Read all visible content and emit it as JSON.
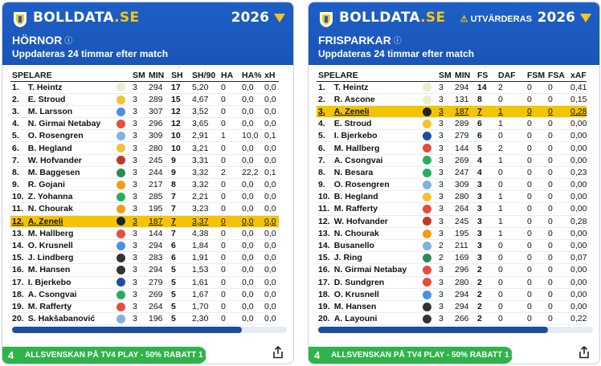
{
  "colors": {
    "brand_blue": "#1d5fc6",
    "accent_yellow": "#f5c518",
    "highlight": "#f5c400",
    "promo_green": "#2fb34a"
  },
  "left": {
    "brand_main": "BOLLDATA",
    "brand_tld": ".SE",
    "year": "2026",
    "title": "HÖRNOR",
    "info": "ⓘ",
    "subtitle": "Uppdateras 24 timmar efter match",
    "columns": [
      "SPELARE",
      "",
      "SM",
      "MIN",
      "SH",
      "SH/90",
      "HA",
      "HA%",
      "xH"
    ],
    "rows": [
      [
        "1.",
        "T. Heintz",
        "#e8f0c8",
        "3",
        "294",
        "17",
        "5,20",
        "0",
        "0,0",
        "0,0"
      ],
      [
        "2.",
        "E. Stroud",
        "#f2c230",
        "3",
        "289",
        "15",
        "4,67",
        "0",
        "0,0",
        "0,0"
      ],
      [
        "3.",
        "M. Larsson",
        "#4a90e2",
        "3",
        "307",
        "12",
        "3,52",
        "0",
        "0,0",
        "0,0"
      ],
      [
        "4.",
        "N. Girmai Netabay",
        "#e74c3c",
        "3",
        "296",
        "12",
        "3,65",
        "0",
        "0,0",
        "0,0"
      ],
      [
        "5.",
        "O. Rosengren",
        "#7fb3e0",
        "3",
        "309",
        "10",
        "2,91",
        "1",
        "10,0",
        "0,1"
      ],
      [
        "6.",
        "B. Hegland",
        "#f2c230",
        "3",
        "280",
        "10",
        "3,21",
        "0",
        "0,0",
        "0,0"
      ],
      [
        "7.",
        "W. Hofvander",
        "#c0392b",
        "3",
        "245",
        "9",
        "3,31",
        "0",
        "0,0",
        "0,0"
      ],
      [
        "8.",
        "M. Baggesen",
        "#2e8b57",
        "3",
        "244",
        "9",
        "3,32",
        "2",
        "22,2",
        "0,1"
      ],
      [
        "9.",
        "R. Gojani",
        "#f39c12",
        "3",
        "217",
        "8",
        "3,32",
        "0",
        "0,0",
        "0,0"
      ],
      [
        "10.",
        "Z. Yohanna",
        "#27ae60",
        "3",
        "285",
        "7",
        "2,21",
        "0",
        "0,0",
        "0,0"
      ],
      [
        "11.",
        "N. Chourak",
        "#f39c12",
        "3",
        "195",
        "7",
        "3,23",
        "0",
        "0,0",
        "0,0"
      ],
      [
        "12.",
        "A. Zeneli",
        "#222222",
        "3",
        "187",
        "7",
        "3,37",
        "0",
        "0,0",
        "0,0"
      ],
      [
        "13.",
        "M. Hallberg",
        "#e74c3c",
        "3",
        "144",
        "7",
        "4,38",
        "0",
        "0,0",
        "0,0"
      ],
      [
        "14.",
        "O. Krusnell",
        "#4a90e2",
        "3",
        "294",
        "6",
        "1,84",
        "0",
        "0,0",
        "0,0"
      ],
      [
        "15.",
        "J. Lindberg",
        "#333333",
        "3",
        "283",
        "6",
        "1,91",
        "0",
        "0,0",
        "0,0"
      ],
      [
        "16.",
        "M. Hansen",
        "#333333",
        "3",
        "294",
        "5",
        "1,53",
        "0",
        "0,0",
        "0,0"
      ],
      [
        "17.",
        "I. Bjerkebo",
        "#1d4e9e",
        "3",
        "279",
        "5",
        "1,61",
        "0",
        "0,0",
        "0,0"
      ],
      [
        "18.",
        "A. Csongvai",
        "#27ae60",
        "3",
        "269",
        "5",
        "1,67",
        "0",
        "0,0",
        "0,0"
      ],
      [
        "19.",
        "M. Rafferty",
        "#e74c3c",
        "3",
        "264",
        "5",
        "1,70",
        "0",
        "0,0",
        "0,0"
      ],
      [
        "20.",
        "S. Hakšabanović",
        "#7fb3e0",
        "3",
        "196",
        "5",
        "2,30",
        "0",
        "0,0",
        "0,0"
      ]
    ],
    "highlight_row": 11,
    "sorted_col": 4,
    "promo": "ALLSVENSKAN PÅ TV4 PLAY - 50% RABATT 1 MÅN",
    "promo_mark": "4"
  },
  "right": {
    "brand_main": "BOLLDATA",
    "brand_tld": ".SE",
    "evaluate": "UTVÄRDERAS",
    "evaluate_icon": "⚠",
    "year": "2026",
    "title": "FRISPARKAR",
    "info": "ⓘ",
    "subtitle": "Uppdateras 24 timmar efter match",
    "columns": [
      "SPELARE",
      "",
      "SM",
      "MIN",
      "FS",
      "DAF",
      "FSM",
      "FSA",
      "xAF"
    ],
    "rows": [
      [
        "1.",
        "T. Heintz",
        "#e8f0c8",
        "3",
        "294",
        "14",
        "2",
        "0",
        "0",
        "0,41"
      ],
      [
        "2.",
        "R. Ascone",
        "#e8f0c8",
        "3",
        "131",
        "8",
        "0",
        "0",
        "0",
        "0,15"
      ],
      [
        "3.",
        "A. Zeneli",
        "#222222",
        "3",
        "187",
        "7",
        "1",
        "0",
        "0",
        "0,28"
      ],
      [
        "4.",
        "E. Stroud",
        "#f2c230",
        "3",
        "289",
        "6",
        "1",
        "0",
        "0",
        "0,00"
      ],
      [
        "5.",
        "I. Bjerkebo",
        "#1d4e9e",
        "3",
        "279",
        "6",
        "0",
        "0",
        "0",
        "0,00"
      ],
      [
        "6.",
        "M. Hallberg",
        "#e74c3c",
        "3",
        "144",
        "5",
        "2",
        "0",
        "0",
        "0,00"
      ],
      [
        "7.",
        "A. Csongvai",
        "#27ae60",
        "3",
        "269",
        "4",
        "1",
        "0",
        "0",
        "0,00"
      ],
      [
        "8.",
        "N. Besara",
        "#27ae60",
        "3",
        "247",
        "4",
        "0",
        "0",
        "0",
        "0,23"
      ],
      [
        "9.",
        "O. Rosengren",
        "#7fb3e0",
        "3",
        "309",
        "3",
        "0",
        "0",
        "0",
        "0,00"
      ],
      [
        "10.",
        "B. Hegland",
        "#f2c230",
        "3",
        "280",
        "3",
        "1",
        "0",
        "0",
        "0,00"
      ],
      [
        "11.",
        "M. Rafferty",
        "#e74c3c",
        "3",
        "264",
        "3",
        "1",
        "0",
        "0",
        "0,00"
      ],
      [
        "12.",
        "W. Hofvander",
        "#c0392b",
        "3",
        "245",
        "3",
        "1",
        "0",
        "0",
        "0,28"
      ],
      [
        "13.",
        "N. Chourak",
        "#f39c12",
        "3",
        "195",
        "3",
        "1",
        "0",
        "0",
        "0,00"
      ],
      [
        "14.",
        "Busanello",
        "#7fb3e0",
        "2",
        "211",
        "3",
        "0",
        "0",
        "0",
        "0,00"
      ],
      [
        "15.",
        "J. Ring",
        "#2e8b57",
        "2",
        "169",
        "3",
        "0",
        "0",
        "0",
        "0,07"
      ],
      [
        "16.",
        "N. Girmai Netabay",
        "#e74c3c",
        "3",
        "296",
        "2",
        "0",
        "0",
        "0",
        "0,00"
      ],
      [
        "17.",
        "D. Sundgren",
        "#e74c3c",
        "3",
        "280",
        "2",
        "0",
        "0",
        "0",
        "0,00"
      ],
      [
        "18.",
        "O. Krusnell",
        "#4a90e2",
        "3",
        "294",
        "2",
        "0",
        "0",
        "0",
        "0,00"
      ],
      [
        "19.",
        "M. Hansen",
        "#333333",
        "3",
        "294",
        "2",
        "0",
        "0",
        "0",
        "0,00"
      ],
      [
        "20.",
        "A. Layouni",
        "#333333",
        "3",
        "266",
        "2",
        "0",
        "0",
        "0",
        "0,22"
      ]
    ],
    "highlight_row": 2,
    "sorted_col": 4,
    "promo": "ALLSVENSKAN PÅ TV4 PLAY - 50% RABATT 1 MÅN",
    "promo_mark": "4"
  }
}
